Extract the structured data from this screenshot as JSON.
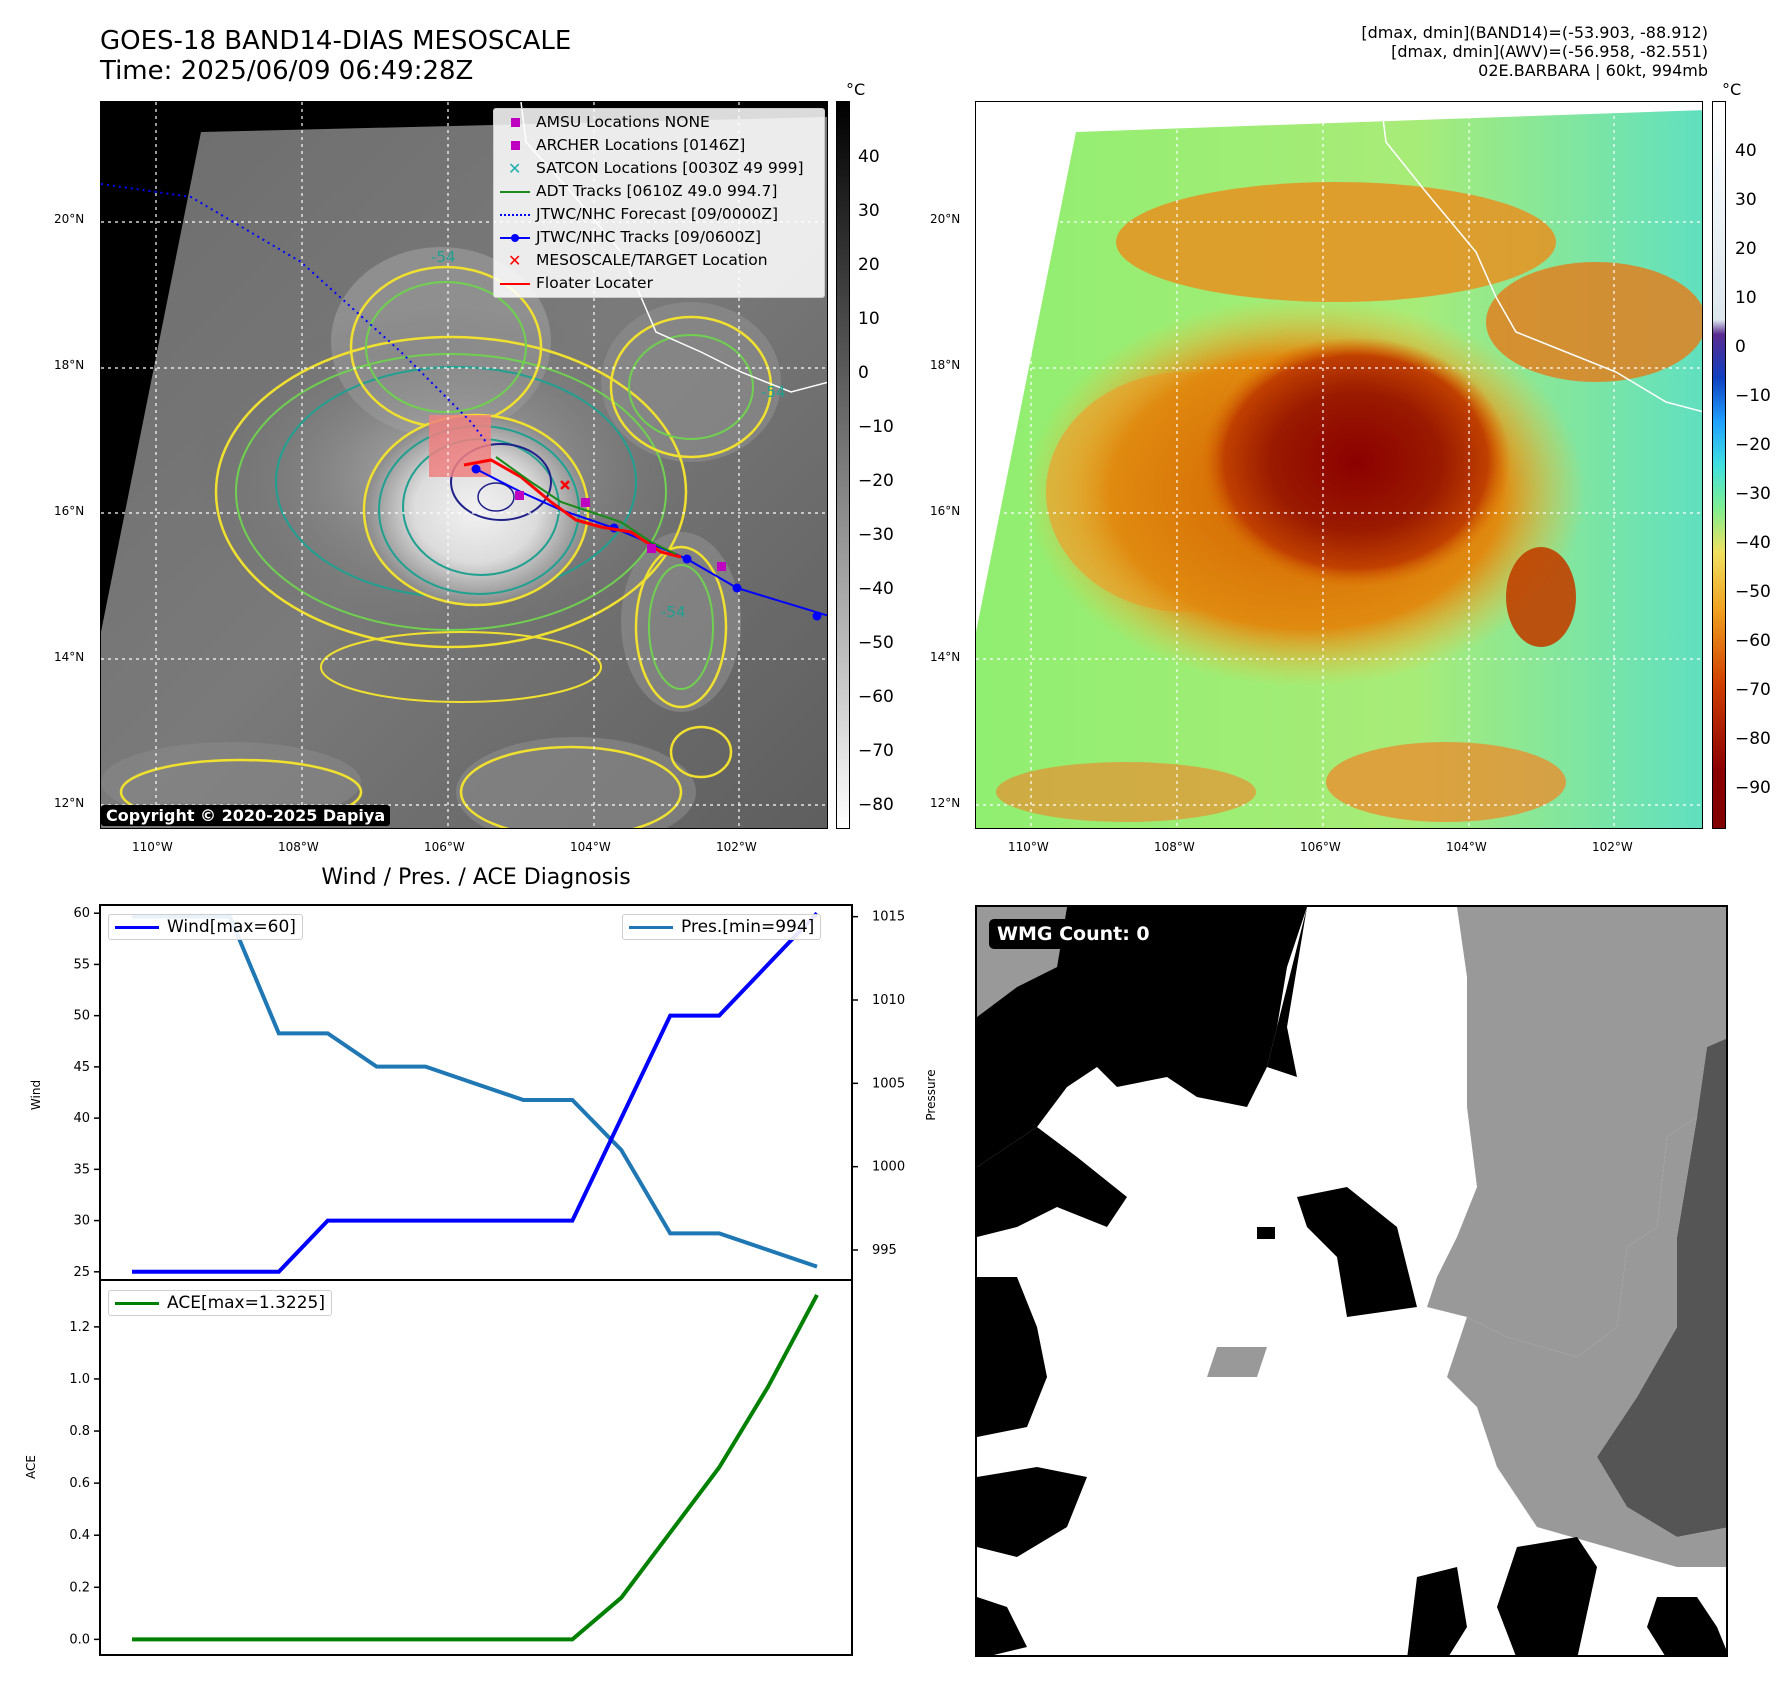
{
  "header": {
    "title_line1": "GOES-18 BAND14-DIAS MESOSCALE",
    "title_line2": "Time: 2025/06/09 06:49:28Z",
    "info_line1": "[dmax, dmin](BAND14)=(-53.903, -88.912)",
    "info_line2": "[dmax, dmin](AWV)=(-56.958, -82.551)",
    "info_line3": "02E.BARBARA | 60kt, 994mb"
  },
  "map_axes": {
    "lon_labels": [
      "110°W",
      "108°W",
      "106°W",
      "104°W",
      "102°W"
    ],
    "lat_labels": [
      "20°N",
      "18°N",
      "16°N",
      "14°N",
      "12°N"
    ]
  },
  "left_map": {
    "copyright": "Copyright © 2020-2025 Dapiya",
    "colorbar_unit": "°C",
    "colorbar_ticks": [
      "40",
      "30",
      "20",
      "10",
      "0",
      "−10",
      "−20",
      "−30",
      "−40",
      "−50",
      "−60",
      "−70",
      "−80"
    ],
    "contour_labels": [
      "-54",
      "-54",
      "-54"
    ],
    "legend": [
      {
        "label": "AMSU Locations NONE",
        "symbol": "square",
        "color": "#c000c0"
      },
      {
        "label": "ARCHER Locations [0146Z]",
        "symbol": "square",
        "color": "#c000c0"
      },
      {
        "label": "SATCON Locations [0030Z 49 999]",
        "symbol": "x",
        "color": "#20b0b0"
      },
      {
        "label": "ADT Tracks [0610Z 49.0 994.7]",
        "symbol": "line",
        "color": "#1a8a1a"
      },
      {
        "label": "JTWC/NHC Forecast [09/0000Z]",
        "symbol": "dotted",
        "color": "#0000ff"
      },
      {
        "label": "JTWC/NHC Tracks [09/0600Z]",
        "symbol": "line-dot",
        "color": "#0000ff"
      },
      {
        "label": "MESOSCALE/TARGET Location",
        "symbol": "x",
        "color": "#ff0000"
      },
      {
        "label": "Floater Locater",
        "symbol": "line",
        "color": "#ff0000"
      }
    ]
  },
  "right_map": {
    "colorbar_unit": "°C",
    "colorbar_ticks": [
      "40",
      "30",
      "20",
      "10",
      "0",
      "−10",
      "−20",
      "−30",
      "−40",
      "−50",
      "−60",
      "−70",
      "−80",
      "−90"
    ]
  },
  "diag": {
    "title": "Wind / Pres. / ACE Diagnosis",
    "wind_ylabel": "Wind",
    "pres_ylabel": "Pressure",
    "ace_ylabel": "ACE",
    "wind_legend": "Wind[max=60]",
    "pres_legend": "Pres.[min=994]",
    "ace_legend": "ACE[max=1.3225]",
    "wind_ticks": [
      "60",
      "55",
      "50",
      "45",
      "40",
      "35",
      "30",
      "25"
    ],
    "pres_ticks": [
      "1015",
      "1010",
      "1005",
      "1000",
      "995"
    ],
    "ace_ticks": [
      "1.2",
      "1.0",
      "0.8",
      "0.6",
      "0.4",
      "0.2",
      "0.0"
    ]
  },
  "wmg": {
    "label": "WMG Count: 0"
  },
  "chart_data": [
    {
      "type": "line",
      "x": [
        0,
        1,
        2,
        3,
        4,
        5,
        6,
        7,
        8,
        9,
        10,
        11,
        12,
        13,
        14
      ],
      "series": [
        {
          "name": "Wind[max=60]",
          "axis": "left",
          "color": "#0000ff",
          "values": [
            25,
            25,
            25,
            25,
            30,
            30,
            30,
            30,
            30,
            30,
            40,
            50,
            50,
            55,
            60
          ]
        },
        {
          "name": "Pres.[min=994]",
          "axis": "right",
          "color": "#1f77b4",
          "values": [
            1015,
            1015,
            1015,
            1008,
            1008,
            1006,
            1006,
            1005,
            1004,
            1004,
            1001,
            996,
            996,
            995,
            994
          ]
        }
      ],
      "ylim_left": [
        24.2,
        60.8
      ],
      "ylim_right": [
        993.2,
        1015.7
      ],
      "ylabel": "Wind",
      "ylabel_right": "Pressure"
    },
    {
      "type": "line",
      "x": [
        0,
        1,
        2,
        3,
        4,
        5,
        6,
        7,
        8,
        9,
        10,
        11,
        12,
        13,
        14
      ],
      "series": [
        {
          "name": "ACE[max=1.3225]",
          "color": "#008000",
          "values": [
            0,
            0,
            0,
            0,
            0,
            0,
            0,
            0,
            0,
            0,
            0.16,
            0.41,
            0.66,
            0.97,
            1.3225
          ]
        }
      ],
      "ylim": [
        -0.06,
        1.38
      ],
      "ylabel": "ACE"
    }
  ]
}
